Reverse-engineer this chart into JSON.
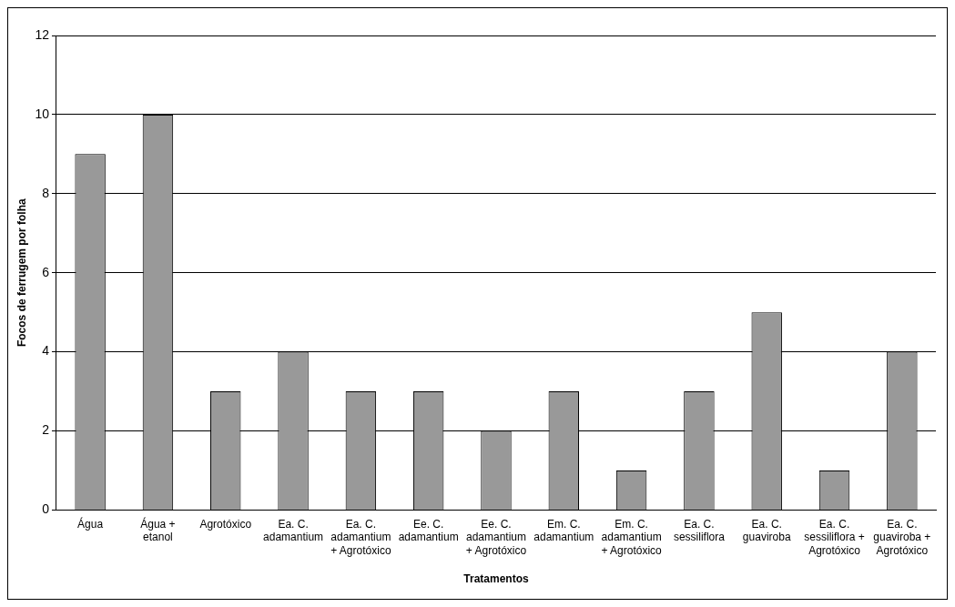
{
  "chart_data": {
    "type": "bar",
    "xlabel": "Tratamentos",
    "ylabel": "Focos de ferrugem por folha",
    "categories": [
      "Água",
      "Água +\netanol",
      "Agrotóxico",
      "Ea. C.\nadamantium",
      "Ea. C.\nadamantium\n+ Agrotóxico",
      "Ee. C.\nadamantium",
      "Ee. C.\nadamantium\n+ Agrotóxico",
      "Em. C.\nadamantium",
      "Em. C.\nadamantium\n+ Agrotóxico",
      "Ea. C.\nsessiliflora",
      "Ea. C.\nguaviroba",
      "Ea. C.\nsessiliflora +\nAgrotóxico",
      "Ea. C.\nguaviroba +\nAgrotóxico"
    ],
    "values": [
      9,
      10,
      3,
      4,
      3,
      3,
      2,
      3,
      1,
      3,
      5,
      1,
      4
    ],
    "color": "#999999",
    "ylim": [
      0,
      12
    ],
    "yticks": [
      0,
      2,
      4,
      6,
      8,
      10,
      12
    ],
    "grid": "y",
    "legend": false
  }
}
